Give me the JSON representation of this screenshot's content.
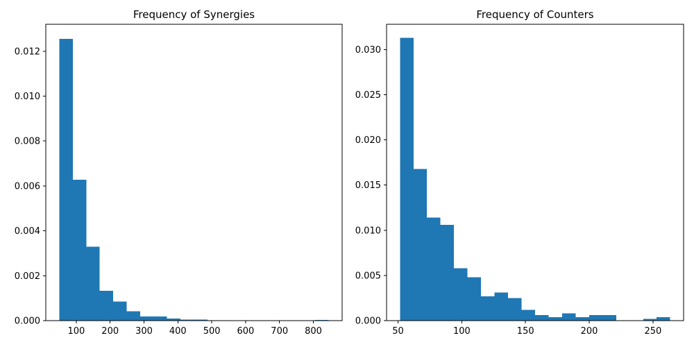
{
  "chart_data": [
    {
      "type": "bar",
      "title": "Frequency of Synergies",
      "xlabel": "",
      "ylabel": "",
      "color": "#1f77b4",
      "bin_edges": [
        50,
        89.75,
        129.5,
        169.25,
        209,
        248.75,
        288.5,
        328.25,
        368,
        407.75,
        447.5,
        487.25,
        527,
        566.75,
        606.5,
        646.25,
        686,
        725.75,
        765.5,
        805.25,
        845
      ],
      "values": [
        0.01255,
        0.00627,
        0.0033,
        0.00133,
        0.00085,
        0.00042,
        0.00018,
        0.00018,
        0.0001,
        4e-05,
        4e-05,
        2e-05,
        0.0,
        0.0,
        0.0,
        0.0,
        0.0,
        0.0,
        0.0,
        3e-05
      ],
      "xlim": [
        10,
        885
      ],
      "ylim": [
        0,
        0.0132
      ],
      "xticks": [
        100,
        200,
        300,
        400,
        500,
        600,
        700,
        800
      ],
      "xtick_labels": [
        "100",
        "200",
        "300",
        "400",
        "500",
        "600",
        "700",
        "800"
      ],
      "yticks": [
        0,
        0.002,
        0.004,
        0.006,
        0.008,
        0.01,
        0.012
      ],
      "ytick_labels": [
        "0.000",
        "0.002",
        "0.004",
        "0.006",
        "0.008",
        "0.010",
        "0.012"
      ]
    },
    {
      "type": "bar",
      "title": "Frequency of Counters",
      "xlabel": "",
      "ylabel": "",
      "color": "#1f77b4",
      "bin_edges": [
        51.5,
        62.1,
        72.7,
        83.3,
        93.9,
        104.5,
        115.1,
        125.7,
        136.3,
        146.9,
        157.5,
        168.1,
        178.7,
        189.3,
        199.9,
        210.5,
        221.1,
        231.7,
        242.3,
        252.9,
        263.5
      ],
      "values": [
        0.0313,
        0.0168,
        0.0114,
        0.0106,
        0.0058,
        0.0048,
        0.0027,
        0.0031,
        0.0025,
        0.0012,
        0.0006,
        0.0004,
        0.0008,
        0.0004,
        0.0006,
        0.0006,
        0.0,
        0.0,
        0.0002,
        0.0004
      ],
      "xlim": [
        41,
        274
      ],
      "ylim": [
        0,
        0.0328
      ],
      "xticks": [
        50,
        100,
        150,
        200,
        250
      ],
      "xtick_labels": [
        "50",
        "100",
        "150",
        "200",
        "250"
      ],
      "yticks": [
        0,
        0.005,
        0.01,
        0.015,
        0.02,
        0.025,
        0.03
      ],
      "ytick_labels": [
        "0.000",
        "0.005",
        "0.010",
        "0.015",
        "0.020",
        "0.025",
        "0.030"
      ]
    }
  ]
}
